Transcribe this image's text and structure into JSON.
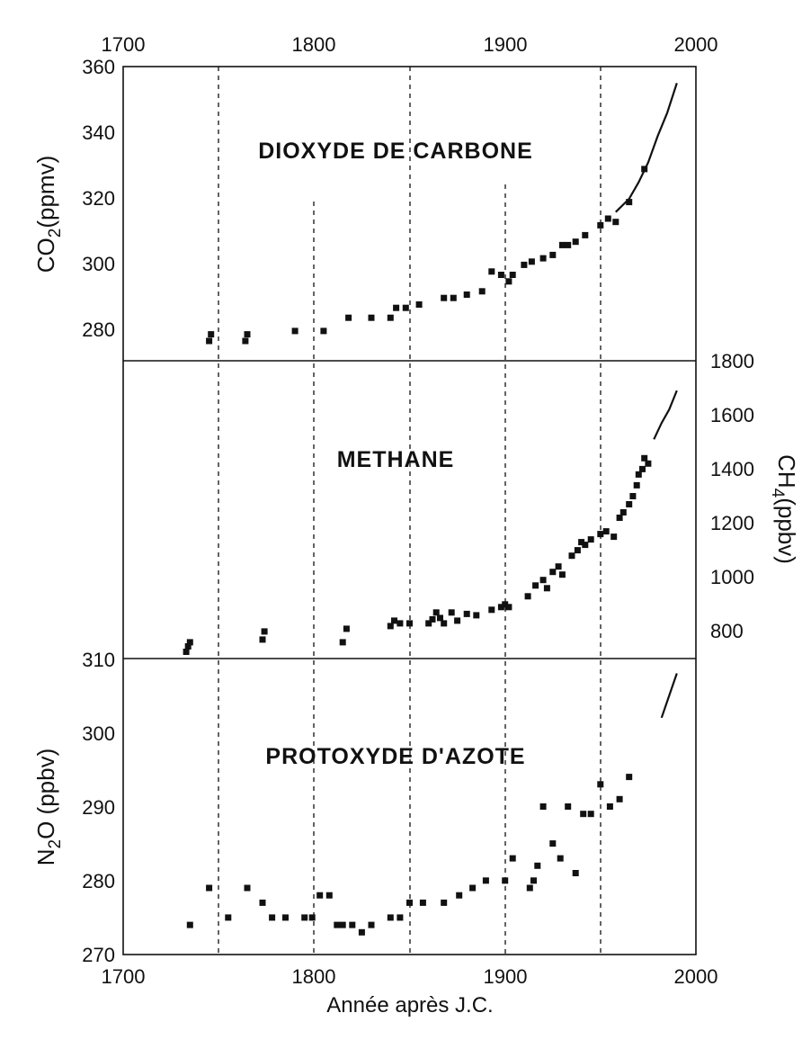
{
  "chart_data": [
    {
      "type": "scatter",
      "title": "DIOXYDE DE CARBONE",
      "ylabel": "CO2(ppmv)",
      "ylabel_main": "CO",
      "ylabel_sub": "2",
      "ylabel_unit": "(ppmv)",
      "xlim": [
        1700,
        2000
      ],
      "ylim": [
        271,
        360
      ],
      "x_ticks": [
        "1700",
        "1800",
        "1900",
        "2000"
      ],
      "y_ticks": [
        "280",
        "300",
        "320",
        "340",
        "360"
      ],
      "grid": "dashed vertical lines at 1750, 1800, 1850, 1900, 1950",
      "series": [
        {
          "x": [
            1745,
            1746,
            1764,
            1765,
            1790,
            1805,
            1818,
            1830,
            1840,
            1843,
            1848,
            1855,
            1868,
            1873,
            1880,
            1888,
            1893,
            1898,
            1902,
            1904,
            1910,
            1914,
            1920,
            1925,
            1930,
            1933,
            1937,
            1942,
            1950,
            1954,
            1958,
            1965,
            1973
          ],
          "y": [
            277,
            279,
            277,
            279,
            280,
            280,
            284,
            284,
            284,
            287,
            287,
            288,
            290,
            290,
            291,
            292,
            298,
            297,
            295,
            297,
            300,
            301,
            302,
            303,
            306,
            306,
            307,
            309,
            312,
            314,
            313,
            319,
            329
          ]
        },
        {
          "name": "",
          "line": true,
          "x": [
            1958,
            1965,
            1970,
            1975,
            1980,
            1985,
            1990
          ],
          "y": [
            316,
            320,
            325,
            331,
            339,
            346,
            355
          ]
        }
      ]
    },
    {
      "type": "scatter",
      "title": "METHANE",
      "ylabel": "CH4(ppbv)",
      "ylabel_main": "CH",
      "ylabel_sub": "4",
      "ylabel_unit": "(ppbv)",
      "xlim": [
        1700,
        2000
      ],
      "ylim": [
        700,
        1800
      ],
      "y_ticks": [
        "800",
        "1000",
        "1200",
        "1400",
        "1600",
        "1800"
      ],
      "series": [
        {
          "x": [
            1733,
            1734,
            1735,
            1773,
            1774,
            1815,
            1817,
            1840,
            1842,
            1845,
            1850,
            1860,
            1862,
            1864,
            1866,
            1868,
            1872,
            1875,
            1880,
            1885,
            1893,
            1898,
            1900,
            1902,
            1912,
            1916,
            1920,
            1922,
            1925,
            1928,
            1930,
            1935,
            1938,
            1940,
            1942,
            1945,
            1950,
            1953,
            1957,
            1960,
            1962,
            1965,
            1967,
            1969,
            1970,
            1972,
            1973,
            1975
          ],
          "y": [
            725,
            745,
            760,
            770,
            800,
            760,
            810,
            820,
            840,
            830,
            830,
            830,
            845,
            870,
            850,
            830,
            870,
            840,
            865,
            860,
            880,
            890,
            900,
            890,
            930,
            970,
            990,
            960,
            1020,
            1040,
            1010,
            1080,
            1100,
            1130,
            1120,
            1140,
            1160,
            1170,
            1150,
            1220,
            1240,
            1270,
            1300,
            1340,
            1380,
            1400,
            1440,
            1420
          ]
        },
        {
          "name": "",
          "line": true,
          "x": [
            1978,
            1982,
            1986,
            1990
          ],
          "y": [
            1510,
            1570,
            1620,
            1690
          ]
        }
      ]
    },
    {
      "type": "scatter",
      "title": "PROTOXYDE D'AZOTE",
      "ylabel": "N2O (ppbv)",
      "ylabel_main": "N",
      "ylabel_sub": "2",
      "ylabel_unit": "O (ppbv)",
      "xlabel": "Année après J.C.",
      "xlim": [
        1700,
        2000
      ],
      "ylim": [
        270,
        310
      ],
      "x_ticks": [
        "1700",
        "1800",
        "1900",
        "2000"
      ],
      "y_ticks": [
        "270",
        "280",
        "290",
        "300",
        "310"
      ],
      "series": [
        {
          "x": [
            1735,
            1745,
            1755,
            1765,
            1773,
            1778,
            1785,
            1795,
            1799,
            1803,
            1808,
            1812,
            1815,
            1820,
            1825,
            1830,
            1840,
            1845,
            1850,
            1857,
            1868,
            1876,
            1883,
            1890,
            1900,
            1904,
            1913,
            1915,
            1917,
            1920,
            1925,
            1929,
            1933,
            1937,
            1941,
            1945,
            1950,
            1955,
            1960,
            1965
          ],
          "y": [
            274,
            279,
            275,
            279,
            277,
            275,
            275,
            275,
            275,
            278,
            278,
            274,
            274,
            274,
            273,
            274,
            275,
            275,
            277,
            277,
            277,
            278,
            279,
            280,
            280,
            283,
            279,
            280,
            282,
            290,
            285,
            283,
            290,
            281,
            289,
            289,
            293,
            290,
            291,
            294
          ]
        },
        {
          "name": "",
          "line": true,
          "x": [
            1982,
            1986,
            1990
          ],
          "y": [
            302,
            305,
            308
          ]
        }
      ]
    }
  ]
}
